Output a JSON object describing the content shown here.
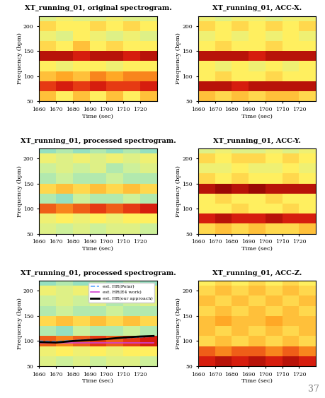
{
  "chart_data": [
    {
      "type": "heatmap",
      "title": "XT_running_01, original spectrogram.",
      "x_label": "Time (sec)",
      "y_label": "Frequency (bpm)",
      "xlim": [
        1660,
        1730
      ],
      "ylim": [
        50,
        220
      ],
      "xticks": [
        1660,
        1670,
        1680,
        1690,
        1700,
        1710,
        1720
      ],
      "yticks": [
        50,
        100,
        150,
        200
      ],
      "x_bins": [
        1660,
        1670,
        1680,
        1690,
        1700,
        1710,
        1720,
        1730
      ],
      "y_bins": [
        50,
        70,
        90,
        110,
        130,
        150,
        170,
        190,
        210,
        230
      ],
      "color_range": [
        0,
        1
      ],
      "cells": [
        [
          0.6,
          0.5,
          0.6,
          0.5,
          0.6,
          0.5,
          0.6
        ],
        [
          0.8,
          0.85,
          0.8,
          0.85,
          0.8,
          0.8,
          0.85
        ],
        [
          0.6,
          0.65,
          0.6,
          0.7,
          0.65,
          0.7,
          0.7
        ],
        [
          0.5,
          0.45,
          0.5,
          0.5,
          0.45,
          0.5,
          0.5
        ],
        [
          0.9,
          0.9,
          0.85,
          0.9,
          0.9,
          0.85,
          0.9
        ],
        [
          0.55,
          0.5,
          0.6,
          0.5,
          0.55,
          0.5,
          0.5
        ],
        [
          0.45,
          0.4,
          0.5,
          0.45,
          0.4,
          0.45,
          0.4
        ],
        [
          0.55,
          0.5,
          0.5,
          0.55,
          0.5,
          0.55,
          0.5
        ],
        [
          0.4,
          0.45,
          0.4,
          0.4,
          0.45,
          0.4,
          0.4
        ]
      ]
    },
    {
      "type": "heatmap",
      "title": "XT_running_01, ACC-X.",
      "x_label": "Time (sec)",
      "y_label": "Frequency (bpm)",
      "xlim": [
        1660,
        1730
      ],
      "ylim": [
        50,
        220
      ],
      "xticks": [
        1660,
        1670,
        1680,
        1690,
        1700,
        1710,
        1720
      ],
      "yticks": [
        50,
        100,
        150,
        200
      ],
      "x_bins": [
        1660,
        1670,
        1680,
        1690,
        1700,
        1710,
        1720,
        1730
      ],
      "y_bins": [
        50,
        70,
        90,
        110,
        130,
        150,
        170,
        190,
        210,
        230
      ],
      "color_range": [
        0,
        1
      ],
      "cells": [
        [
          0.6,
          0.55,
          0.6,
          0.55,
          0.6,
          0.6,
          0.55
        ],
        [
          0.9,
          0.9,
          0.85,
          0.9,
          0.9,
          0.9,
          0.9
        ],
        [
          0.5,
          0.55,
          0.5,
          0.5,
          0.55,
          0.5,
          0.5
        ],
        [
          0.5,
          0.45,
          0.5,
          0.45,
          0.5,
          0.45,
          0.5
        ],
        [
          0.9,
          0.9,
          0.9,
          0.85,
          0.9,
          0.9,
          0.9
        ],
        [
          0.5,
          0.55,
          0.5,
          0.5,
          0.55,
          0.5,
          0.5
        ],
        [
          0.45,
          0.5,
          0.45,
          0.5,
          0.45,
          0.5,
          0.45
        ],
        [
          0.55,
          0.5,
          0.55,
          0.5,
          0.55,
          0.5,
          0.55
        ],
        [
          0.45,
          0.4,
          0.45,
          0.45,
          0.4,
          0.45,
          0.45
        ]
      ]
    },
    {
      "type": "heatmap",
      "title": "XT_running_01, processed spectrogram.",
      "x_label": "Time (sec)",
      "y_label": "Frequency (bpm)",
      "xlim": [
        1660,
        1730
      ],
      "ylim": [
        50,
        220
      ],
      "xticks": [
        1660,
        1670,
        1680,
        1690,
        1700,
        1710,
        1720
      ],
      "yticks": [
        50,
        100,
        150,
        200
      ],
      "x_bins": [
        1660,
        1670,
        1680,
        1690,
        1700,
        1710,
        1720,
        1730
      ],
      "y_bins": [
        50,
        70,
        90,
        110,
        130,
        150,
        170,
        190,
        210,
        230
      ],
      "color_range": [
        0,
        1
      ],
      "cells": [
        [
          0.4,
          0.35,
          0.4,
          0.35,
          0.4,
          0.4,
          0.35
        ],
        [
          0.45,
          0.5,
          0.45,
          0.5,
          0.45,
          0.5,
          0.5
        ],
        [
          0.75,
          0.7,
          0.75,
          0.8,
          0.75,
          0.8,
          0.85
        ],
        [
          0.3,
          0.25,
          0.35,
          0.3,
          0.3,
          0.35,
          0.3
        ],
        [
          0.55,
          0.6,
          0.55,
          0.6,
          0.55,
          0.6,
          0.55
        ],
        [
          0.3,
          0.35,
          0.3,
          0.3,
          0.35,
          0.3,
          0.3
        ],
        [
          0.35,
          0.4,
          0.35,
          0.4,
          0.3,
          0.35,
          0.4
        ],
        [
          0.45,
          0.4,
          0.45,
          0.4,
          0.45,
          0.4,
          0.45
        ],
        [
          0.25,
          0.3,
          0.25,
          0.3,
          0.25,
          0.3,
          0.25
        ]
      ]
    },
    {
      "type": "heatmap",
      "title": "XT_running_01, ACC-Y.",
      "x_label": "Time (sec)",
      "y_label": "Frequency (bpm)",
      "xlim": [
        1660,
        1730
      ],
      "ylim": [
        50,
        220
      ],
      "xticks": [
        1660,
        1670,
        1680,
        1690,
        1700,
        1710,
        1720
      ],
      "yticks": [
        50,
        100,
        150,
        200
      ],
      "x_bins": [
        1660,
        1670,
        1680,
        1690,
        1700,
        1710,
        1720,
        1730
      ],
      "y_bins": [
        50,
        70,
        90,
        110,
        130,
        150,
        170,
        190,
        210,
        230
      ],
      "color_range": [
        0,
        1
      ],
      "cells": [
        [
          0.55,
          0.6,
          0.55,
          0.6,
          0.55,
          0.55,
          0.6
        ],
        [
          0.85,
          0.9,
          0.85,
          0.85,
          0.9,
          0.85,
          0.85
        ],
        [
          0.5,
          0.5,
          0.55,
          0.5,
          0.5,
          0.55,
          0.5
        ],
        [
          0.5,
          0.55,
          0.5,
          0.5,
          0.55,
          0.5,
          0.5
        ],
        [
          0.9,
          0.95,
          0.9,
          0.95,
          0.9,
          0.9,
          0.9
        ],
        [
          0.55,
          0.5,
          0.55,
          0.5,
          0.5,
          0.55,
          0.5
        ],
        [
          0.45,
          0.45,
          0.5,
          0.45,
          0.45,
          0.5,
          0.45
        ],
        [
          0.55,
          0.5,
          0.55,
          0.55,
          0.5,
          0.55,
          0.5
        ],
        [
          0.4,
          0.45,
          0.4,
          0.4,
          0.45,
          0.4,
          0.45
        ]
      ]
    },
    {
      "type": "heatmap",
      "title": "XT_running_01, processed spectrogram.",
      "x_label": "Time (sec)",
      "y_label": "Frequency (bpm)",
      "xlim": [
        1660,
        1730
      ],
      "ylim": [
        50,
        220
      ],
      "xticks": [
        1660,
        1670,
        1680,
        1690,
        1700,
        1710,
        1720
      ],
      "yticks": [
        50,
        100,
        150,
        200
      ],
      "x_bins": [
        1660,
        1670,
        1680,
        1690,
        1700,
        1710,
        1720,
        1730
      ],
      "y_bins": [
        50,
        70,
        90,
        110,
        130,
        150,
        170,
        190,
        210,
        230
      ],
      "color_range": [
        0,
        1
      ],
      "cells": [
        [
          0.4,
          0.35,
          0.4,
          0.35,
          0.4,
          0.4,
          0.35
        ],
        [
          0.45,
          0.5,
          0.45,
          0.5,
          0.45,
          0.5,
          0.5
        ],
        [
          0.75,
          0.7,
          0.75,
          0.8,
          0.75,
          0.8,
          0.85
        ],
        [
          0.3,
          0.25,
          0.35,
          0.3,
          0.3,
          0.35,
          0.3
        ],
        [
          0.55,
          0.6,
          0.55,
          0.6,
          0.55,
          0.6,
          0.55
        ],
        [
          0.3,
          0.35,
          0.3,
          0.3,
          0.35,
          0.3,
          0.3
        ],
        [
          0.35,
          0.4,
          0.35,
          0.4,
          0.3,
          0.35,
          0.4
        ],
        [
          0.45,
          0.4,
          0.45,
          0.4,
          0.45,
          0.4,
          0.45
        ],
        [
          0.25,
          0.3,
          0.25,
          0.3,
          0.25,
          0.3,
          0.25
        ]
      ],
      "legend": "upper right",
      "series": [
        {
          "name": "est. HR(Polar)",
          "type": "line",
          "color": "#5fa8ff",
          "line_style": "dashed",
          "x": [
            1660,
            1670,
            1680,
            1690,
            1700,
            1710,
            1720,
            1728
          ],
          "values": [
            100,
            99,
            101,
            103,
            104,
            106,
            108,
            109
          ]
        },
        {
          "name": "est. HR(E4 work)",
          "type": "line",
          "color": "#d040d0",
          "line_style": "solid",
          "x": [
            1660,
            1670,
            1680,
            1690,
            1700,
            1710,
            1720,
            1728
          ],
          "values": [
            97,
            97,
            97,
            97,
            97,
            97,
            97,
            97
          ]
        },
        {
          "name": "est. HR(our approach)",
          "type": "line",
          "color": "#000000",
          "line_style": "solid",
          "x": [
            1660,
            1670,
            1680,
            1690,
            1700,
            1710,
            1720,
            1728
          ],
          "values": [
            98,
            97,
            100,
            102,
            104,
            107,
            109,
            110
          ]
        }
      ]
    },
    {
      "type": "heatmap",
      "title": "XT_running_01, ACC-Z.",
      "x_label": "Time (sec)",
      "y_label": "Frequency (bpm)",
      "xlim": [
        1660,
        1730
      ],
      "ylim": [
        50,
        220
      ],
      "xticks": [
        1660,
        1670,
        1680,
        1690,
        1700,
        1710,
        1720
      ],
      "yticks": [
        50,
        100,
        150,
        200
      ],
      "x_bins": [
        1660,
        1670,
        1680,
        1690,
        1700,
        1710,
        1720,
        1730
      ],
      "y_bins": [
        50,
        70,
        90,
        110,
        130,
        150,
        170,
        190,
        210,
        230
      ],
      "color_range": [
        0,
        1
      ],
      "cells": [
        [
          0.85,
          0.9,
          0.85,
          0.9,
          0.85,
          0.9,
          0.85
        ],
        [
          0.75,
          0.7,
          0.75,
          0.75,
          0.7,
          0.75,
          0.7
        ],
        [
          0.55,
          0.6,
          0.55,
          0.6,
          0.55,
          0.6,
          0.55
        ],
        [
          0.6,
          0.55,
          0.6,
          0.55,
          0.6,
          0.55,
          0.6
        ],
        [
          0.6,
          0.65,
          0.6,
          0.6,
          0.65,
          0.6,
          0.6
        ],
        [
          0.55,
          0.6,
          0.55,
          0.6,
          0.55,
          0.6,
          0.55
        ],
        [
          0.6,
          0.55,
          0.6,
          0.55,
          0.6,
          0.55,
          0.6
        ],
        [
          0.55,
          0.6,
          0.55,
          0.6,
          0.55,
          0.6,
          0.55
        ],
        [
          0.5,
          0.55,
          0.5,
          0.55,
          0.5,
          0.55,
          0.5
        ]
      ]
    }
  ],
  "page_number": "37"
}
